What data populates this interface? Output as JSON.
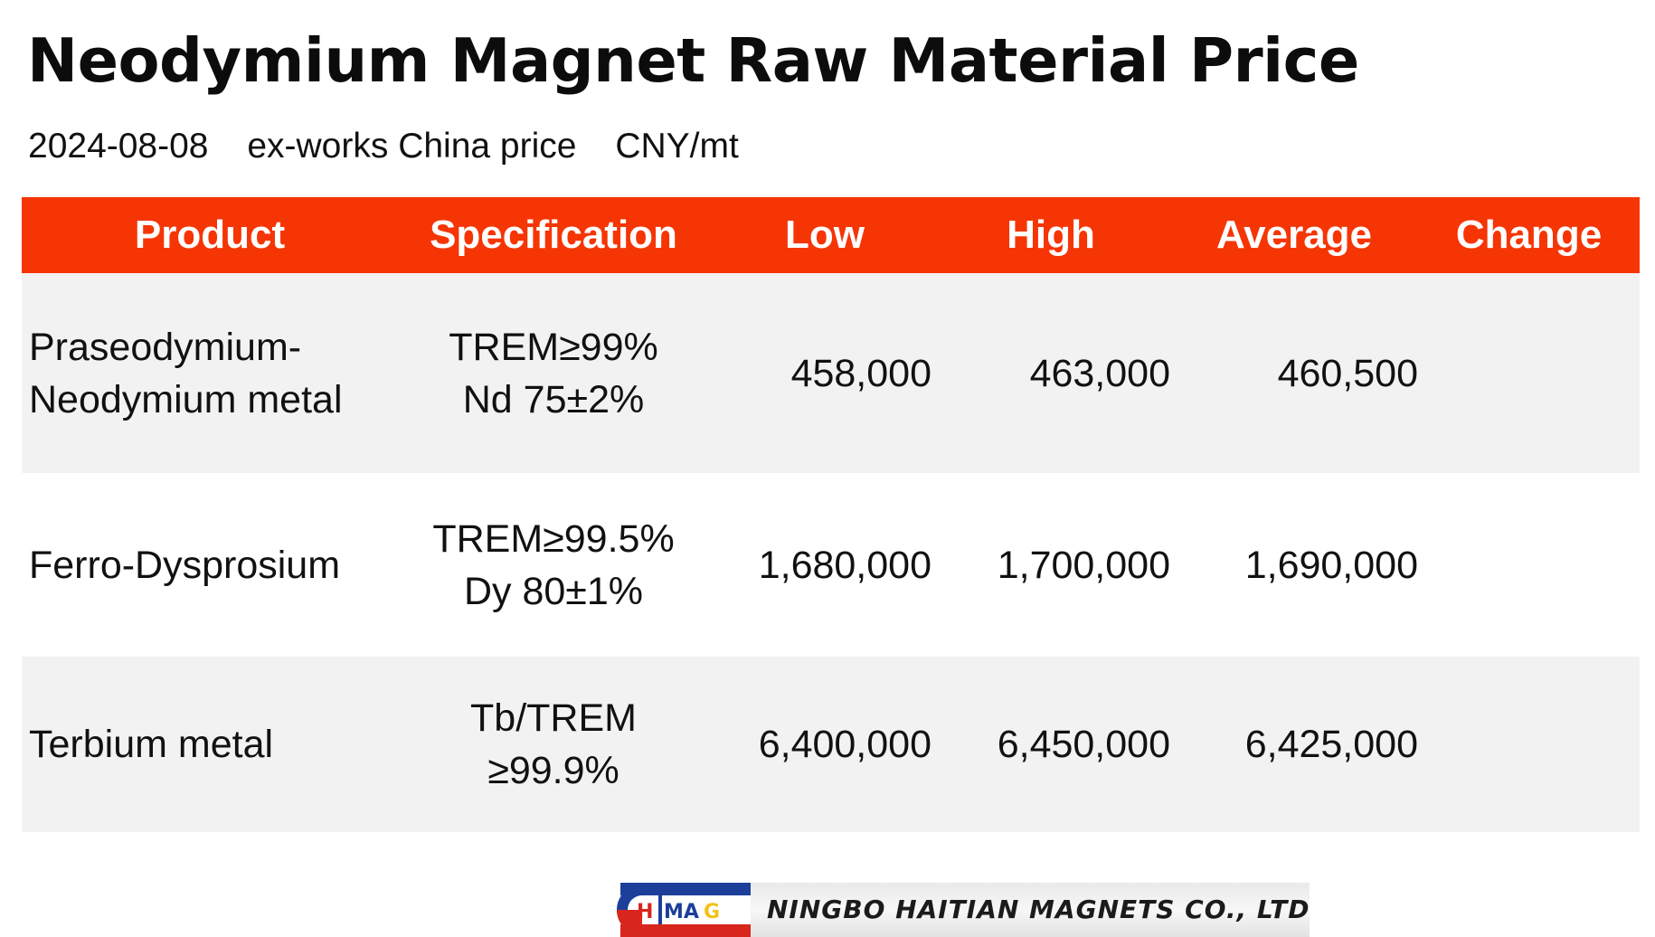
{
  "title": "Neodymium Magnet Raw Material Price",
  "subtitle": {
    "date": "2024-08-08",
    "basis": "ex-works China price",
    "unit": "CNY/mt"
  },
  "table": {
    "headers": {
      "product": "Product",
      "specification": "Specification",
      "low": "Low",
      "high": "High",
      "average": "Average",
      "change": "Change"
    },
    "rows": [
      {
        "product_line1": "Praseodymium-",
        "product_line2": "Neodymium metal",
        "spec_line1": "TREM≥99%",
        "spec_line2": "Nd 75±2%",
        "low": "458,000",
        "high": "463,000",
        "average": "460,500",
        "change": ""
      },
      {
        "product_line1": "Ferro-Dysprosium",
        "product_line2": "",
        "spec_line1": "TREM≥99.5%",
        "spec_line2": "Dy 80±1%",
        "low": "1,680,000",
        "high": "1,700,000",
        "average": "1,690,000",
        "change": ""
      },
      {
        "product_line1": "Terbium metal",
        "product_line2": "",
        "spec_line1": "Tb/TREM",
        "spec_line2": "≥99.9%",
        "low": "6,400,000",
        "high": "6,450,000",
        "average": "6,425,000",
        "change": ""
      }
    ]
  },
  "logo": {
    "mark_letters": "HTMAG",
    "company": "NINGBO HAITIAN MAGNETS CO., LTD",
    "colors": {
      "red": "#d8261c",
      "blue": "#1d3f9a",
      "yellow": "#f2c21b"
    }
  }
}
